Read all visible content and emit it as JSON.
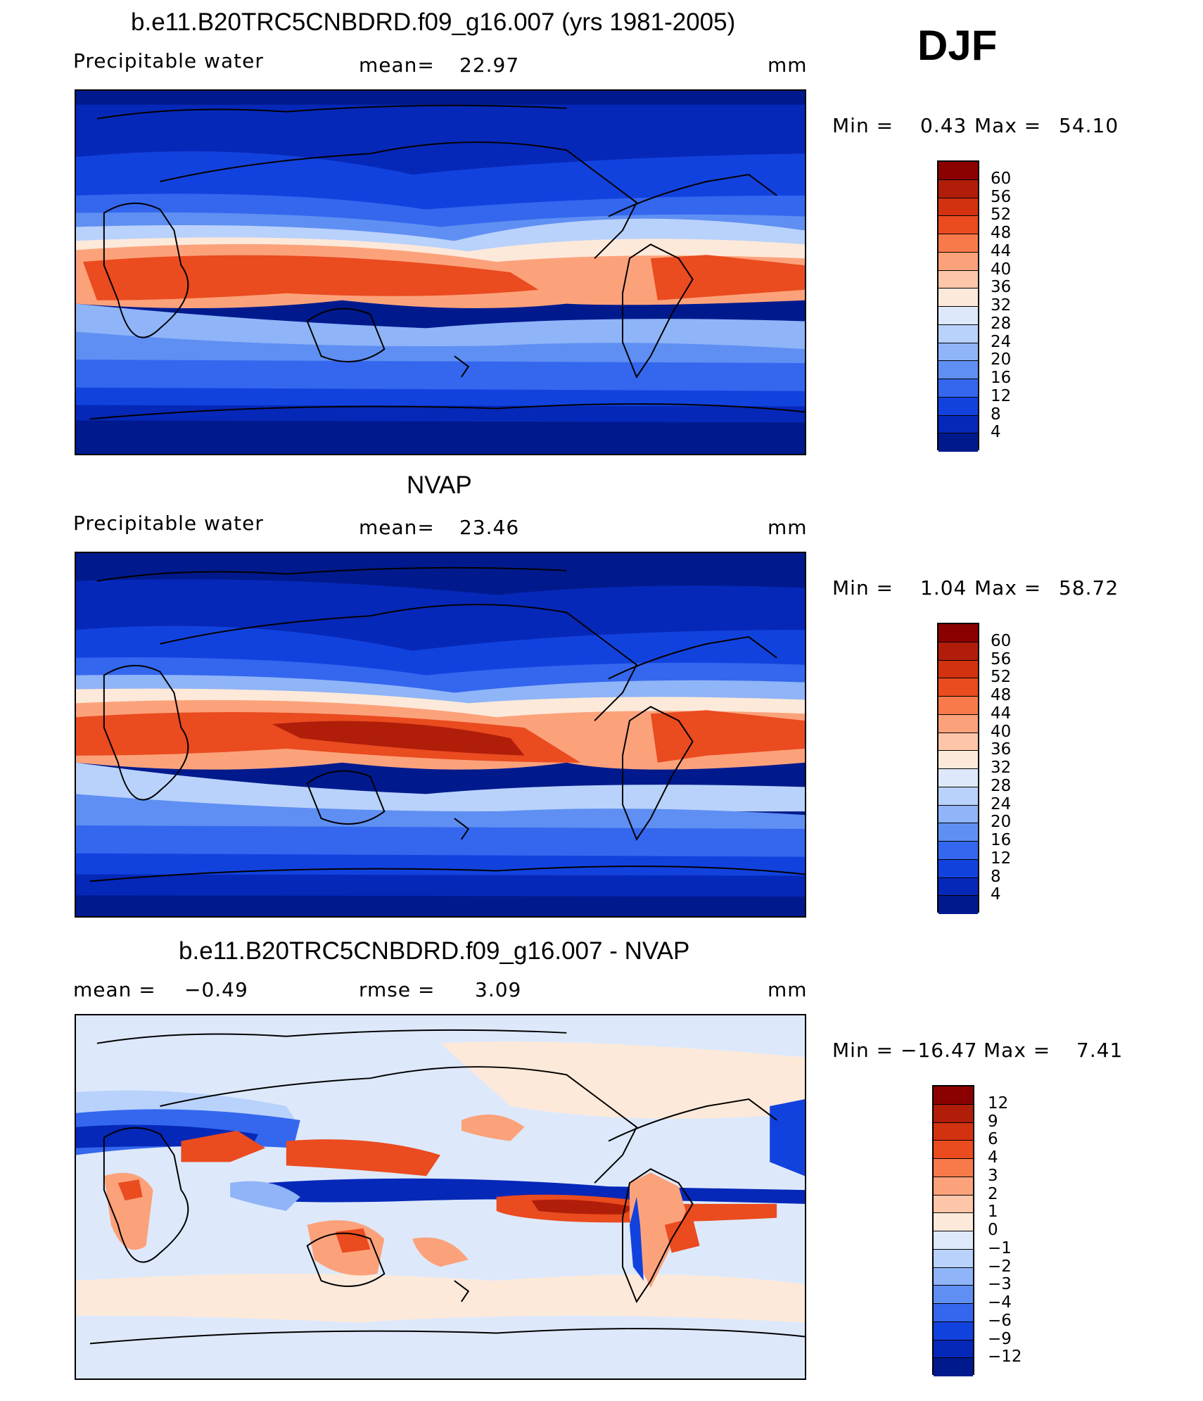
{
  "season": "DJF",
  "panels": [
    {
      "id": "model",
      "title": "b.e11.B20TRC5CNBDRD.f09_g16.007 (yrs 1981-2005)",
      "variable": "Precipitable water",
      "stat_left": "",
      "stat_mid_label": "mean=",
      "stat_mid_value": "22.97",
      "units": "mm",
      "min_label": "Min =",
      "min_value": "0.43",
      "max_label": "Max =",
      "max_value": "54.10",
      "colorbar": {
        "ticks": [
          "60",
          "56",
          "52",
          "48",
          "44",
          "40",
          "36",
          "32",
          "28",
          "24",
          "20",
          "16",
          "12",
          "8",
          "4"
        ],
        "colors": [
          "#8b0000",
          "#b01e0a",
          "#d2320f",
          "#ea4b1f",
          "#f87a4a",
          "#fca27b",
          "#fdc6a8",
          "#fde9da",
          "#dde9fb",
          "#b9d2fb",
          "#8fb4f8",
          "#5f8ff2",
          "#3467ee",
          "#1242de",
          "#0628b8",
          "#001a8e"
        ]
      }
    },
    {
      "id": "obs",
      "title": "NVAP",
      "variable": "Precipitable water",
      "stat_left": "",
      "stat_mid_label": "mean=",
      "stat_mid_value": "23.46",
      "units": "mm",
      "min_label": "Min =",
      "min_value": "1.04",
      "max_label": "Max =",
      "max_value": "58.72",
      "colorbar": {
        "ticks": [
          "60",
          "56",
          "52",
          "48",
          "44",
          "40",
          "36",
          "32",
          "28",
          "24",
          "20",
          "16",
          "12",
          "8",
          "4"
        ],
        "colors": [
          "#8b0000",
          "#b01e0a",
          "#d2320f",
          "#ea4b1f",
          "#f87a4a",
          "#fca27b",
          "#fdc6a8",
          "#fde9da",
          "#dde9fb",
          "#b9d2fb",
          "#8fb4f8",
          "#5f8ff2",
          "#3467ee",
          "#1242de",
          "#0628b8",
          "#001a8e"
        ]
      }
    },
    {
      "id": "diff",
      "title": "b.e11.B20TRC5CNBDRD.f09_g16.007 - NVAP",
      "variable": "",
      "stat_left_label": "mean =",
      "stat_left_value": "−0.49",
      "stat_mid_label": "rmse =",
      "stat_mid_value": "3.09",
      "units": "mm",
      "min_label": "Min =",
      "min_value": "−16.47",
      "max_label": "Max =",
      "max_value": "7.41",
      "colorbar": {
        "ticks": [
          "12",
          "9",
          "6",
          "4",
          "3",
          "2",
          "1",
          "0",
          "−1",
          "−2",
          "−3",
          "−4",
          "−6",
          "−9",
          "−12"
        ],
        "colors": [
          "#8b0000",
          "#b01e0a",
          "#d2320f",
          "#ea4b1f",
          "#f87a4a",
          "#fca27b",
          "#fdc6a8",
          "#fde9da",
          "#dde9fb",
          "#b9d2fb",
          "#8fb4f8",
          "#5f8ff2",
          "#3467ee",
          "#1242de",
          "#0628b8",
          "#001a8e"
        ]
      }
    }
  ],
  "colors": {
    "deep_blue": "#001a8e",
    "mid_blue": "#3467ee",
    "light_blue": "#b9d2fb",
    "neutral_blue": "#dde9fb",
    "neutral_red": "#fde9da",
    "light_red": "#fca27b",
    "mid_red": "#ea4b1f",
    "dark_red": "#b01e0a",
    "coast": "#000000"
  }
}
